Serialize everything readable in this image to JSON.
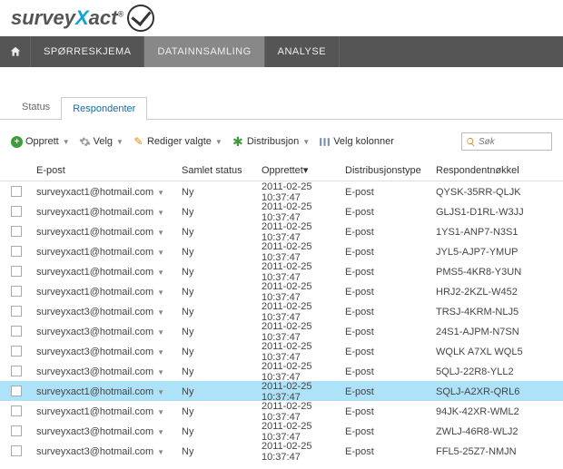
{
  "logo": {
    "part1": "survey",
    "part2": "X",
    "part3": "act"
  },
  "nav": {
    "items": [
      {
        "label": "SPØRRESKJEMA",
        "active": false
      },
      {
        "label": "DATAINNSAMLING",
        "active": true
      },
      {
        "label": "ANALYSE",
        "active": false
      }
    ]
  },
  "tabs": {
    "items": [
      {
        "label": "Status",
        "active": false
      },
      {
        "label": "Respondenter",
        "active": true
      }
    ]
  },
  "toolbar": {
    "create": "Opprett",
    "select": "Velg",
    "edit": "Rediger valgte",
    "distribute": "Distribusjon",
    "columns": "Velg kolonner",
    "search_placeholder": "Søk"
  },
  "columns": {
    "email": "E-post",
    "status": "Samlet status",
    "created": "Opprettet",
    "sort_indicator": "▾",
    "disttype": "Distribusjonstype",
    "key": "Respondentnøkkel"
  },
  "rows": [
    {
      "email": "surveyxact1@hotmail.com",
      "status": "Ny",
      "created": "2011-02-25 10:37:47",
      "dist": "E-post",
      "key": "QYSK-35RR-QLJK",
      "selected": false
    },
    {
      "email": "surveyxact1@hotmail.com",
      "status": "Ny",
      "created": "2011-02-25 10:37:47",
      "dist": "E-post",
      "key": "GLJS1-D1RL-W3JJ",
      "selected": false
    },
    {
      "email": "surveyxact1@hotmail.com",
      "status": "Ny",
      "created": "2011-02-25 10:37:47",
      "dist": "E-post",
      "key": "1YS1-ANP7-N3S1",
      "selected": false
    },
    {
      "email": "surveyxact1@hotmail.com",
      "status": "Ny",
      "created": "2011-02-25 10:37:47",
      "dist": "E-post",
      "key": "JYL5-AJP7-YMUP",
      "selected": false
    },
    {
      "email": "surveyxact1@hotmail.com",
      "status": "Ny",
      "created": "2011-02-25 10:37:47",
      "dist": "E-post",
      "key": "PMS5-4KR8-Y3UN",
      "selected": false
    },
    {
      "email": "surveyxact1@hotmail.com",
      "status": "Ny",
      "created": "2011-02-25 10:37:47",
      "dist": "E-post",
      "key": "HRJ2-2KZL-W452",
      "selected": false
    },
    {
      "email": "surveyxact3@hotmail.com",
      "status": "Ny",
      "created": "2011-02-25 10:37:47",
      "dist": "E-post",
      "key": "TRSJ-4KRM-NLJ5",
      "selected": false
    },
    {
      "email": "surveyxact3@hotmail.com",
      "status": "Ny",
      "created": "2011-02-25 10:37:47",
      "dist": "E-post",
      "key": "24S1-AJPM-N7SN",
      "selected": false
    },
    {
      "email": "surveyxact3@hotmail.com",
      "status": "Ny",
      "created": "2011-02-25 10:37:47",
      "dist": "E-post",
      "key": "WQLK A7XL WQL5",
      "selected": false
    },
    {
      "email": "surveyxact3@hotmail.com",
      "status": "Ny",
      "created": "2011-02-25 10:37:47",
      "dist": "E-post",
      "key": "5QLJ-22R8-YLL2",
      "selected": false
    },
    {
      "email": "surveyxact1@hotmail.com",
      "status": "Ny",
      "created": "2011-02-25 10:37:47",
      "dist": "E-post",
      "key": "SQLJ-A2XR-QRL6",
      "selected": true
    },
    {
      "email": "surveyxact1@hotmail.com",
      "status": "Ny",
      "created": "2011-02-25 10:37:47",
      "dist": "E-post",
      "key": "94JK-42XR-WML2",
      "selected": false
    },
    {
      "email": "surveyxact3@hotmail.com",
      "status": "Ny",
      "created": "2011-02-25 10:37:47",
      "dist": "E-post",
      "key": "ZWLJ-46R8-WLJ2",
      "selected": false
    },
    {
      "email": "surveyxact3@hotmail.com",
      "status": "Ny",
      "created": "2011-02-25 10:37:47",
      "dist": "E-post",
      "key": "FFL5-25Z7-NMJN",
      "selected": false
    }
  ]
}
